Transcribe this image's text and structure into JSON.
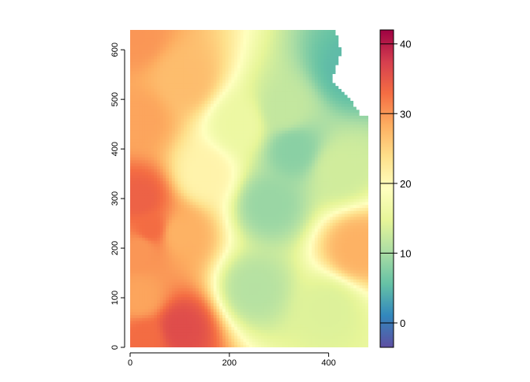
{
  "chart_data": {
    "type": "heatmap",
    "title": "",
    "xlabel": "",
    "ylabel": "",
    "xlim": [
      0,
      480
    ],
    "ylim": [
      0,
      640
    ],
    "x_ticks": [
      0,
      200,
      400
    ],
    "y_ticks": [
      0,
      100,
      200,
      300,
      400,
      500,
      600
    ],
    "colorbar": {
      "range": [
        -3.5,
        42
      ],
      "ticks": [
        0,
        10,
        20,
        30,
        40
      ],
      "palette": [
        "#5E4FA2",
        "#3288BD",
        "#66C2A5",
        "#ABDDA4",
        "#E6F598",
        "#FFFFBF",
        "#FEE08B",
        "#FDAE61",
        "#F46D43",
        "#D53E4F",
        "#9E0142"
      ]
    },
    "grid": false,
    "no_data_color": "#ffffff",
    "field_description": "approximate values (data units) of the raster field",
    "samples": [
      {
        "x": 20,
        "y": 300,
        "value": 34
      },
      {
        "x": 40,
        "y": 240,
        "value": 33
      },
      {
        "x": 20,
        "y": 200,
        "value": 30
      },
      {
        "x": 20,
        "y": 100,
        "value": 29
      },
      {
        "x": 30,
        "y": 20,
        "value": 33
      },
      {
        "x": 100,
        "y": 40,
        "value": 36
      },
      {
        "x": 100,
        "y": 230,
        "value": 28
      },
      {
        "x": 20,
        "y": 460,
        "value": 29
      },
      {
        "x": 110,
        "y": 540,
        "value": 27
      },
      {
        "x": 10,
        "y": 630,
        "value": 30
      },
      {
        "x": 220,
        "y": 450,
        "value": 16
      },
      {
        "x": 310,
        "y": 480,
        "value": 12
      },
      {
        "x": 330,
        "y": 400,
        "value": 8
      },
      {
        "x": 280,
        "y": 290,
        "value": 9
      },
      {
        "x": 250,
        "y": 120,
        "value": 11
      },
      {
        "x": 440,
        "y": 560,
        "value": 5
      },
      {
        "x": 460,
        "y": 200,
        "value": 28
      },
      {
        "x": 150,
        "y": 350,
        "value": 21
      },
      {
        "x": 400,
        "y": 80,
        "value": 14
      },
      {
        "x": 420,
        "y": 360,
        "value": 13
      }
    ]
  }
}
